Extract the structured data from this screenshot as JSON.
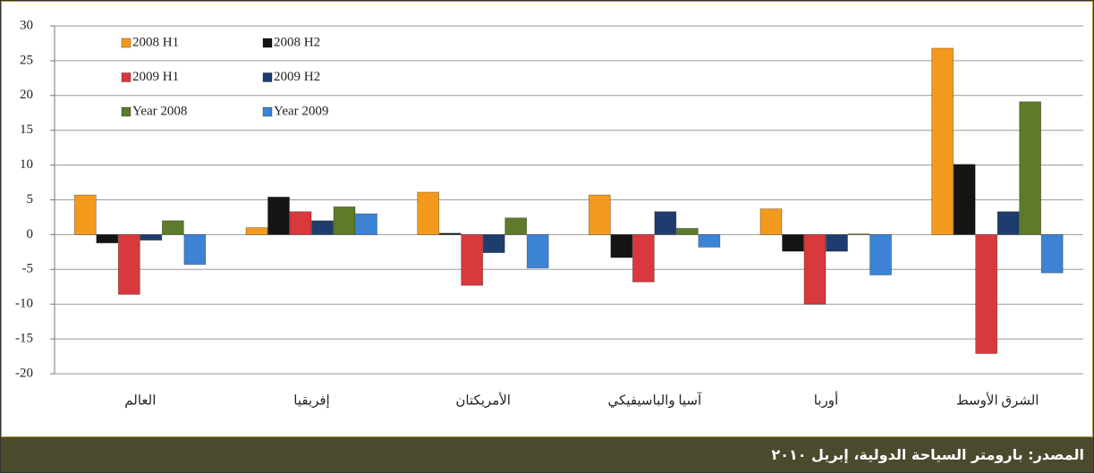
{
  "chart_data": {
    "type": "bar",
    "categories": [
      "العالم",
      "إفريقيا",
      "الأمريكتان",
      "آسيا والباسيفيكي",
      "أوربا",
      "الشرق الأوسط"
    ],
    "series": [
      {
        "name": "2008 H1",
        "color": "#f39a1e",
        "values": [
          5.7,
          1.0,
          6.1,
          5.7,
          3.7,
          26.8
        ]
      },
      {
        "name": "2008 H2",
        "color": "#141414",
        "values": [
          -1.2,
          5.4,
          0.2,
          -3.3,
          -2.4,
          10.1
        ]
      },
      {
        "name": "2009 H1",
        "color": "#d8393d",
        "values": [
          -8.6,
          3.3,
          -7.3,
          -6.8,
          -10.0,
          -17.1
        ]
      },
      {
        "name": "2009 H2",
        "color": "#1f3c6e",
        "values": [
          -0.8,
          2.0,
          -2.6,
          3.3,
          -2.4,
          3.3
        ]
      },
      {
        "name": "Year 2008",
        "color": "#5d7b2a",
        "values": [
          2.0,
          4.0,
          2.4,
          0.9,
          0.1,
          19.1
        ]
      },
      {
        "name": "Year 2009",
        "color": "#3d83d5",
        "values": [
          -4.3,
          3.0,
          -4.8,
          -1.8,
          -5.8,
          -5.5
        ]
      }
    ],
    "ylim": [
      -20,
      30
    ],
    "yticks": [
      -20,
      -15,
      -10,
      -5,
      0,
      5,
      10,
      15,
      20,
      25,
      30
    ],
    "grid": true,
    "legend": "top-left"
  },
  "footer": {
    "source": "المصدر: بارومتر السياحة الدولية، إبريل ٢٠١٠"
  }
}
